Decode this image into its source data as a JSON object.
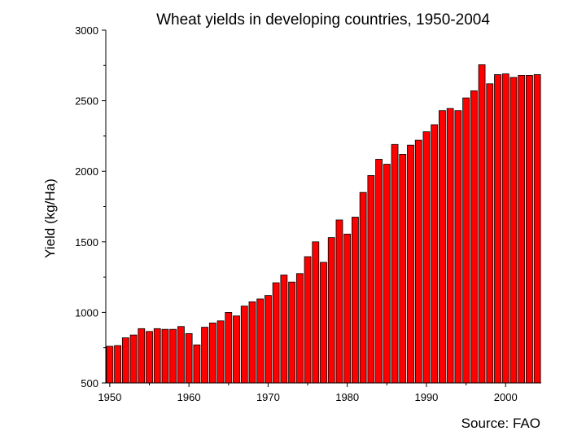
{
  "chart_data": {
    "type": "bar",
    "title": "Wheat yields in developing countries, 1950-2004",
    "xlabel": "",
    "ylabel": "Yield (kg/Ha)",
    "source": "Source:  FAO",
    "ylim": [
      500,
      3000
    ],
    "xlim": [
      1949.5,
      2004.5
    ],
    "yticks": [
      500,
      1000,
      1500,
      2000,
      2500,
      3000
    ],
    "xticks": [
      1950,
      1960,
      1970,
      1980,
      1990,
      2000
    ],
    "grid": false,
    "bar_color": "#ff0000",
    "x": [
      1950,
      1951,
      1952,
      1953,
      1954,
      1955,
      1956,
      1957,
      1958,
      1959,
      1960,
      1961,
      1962,
      1963,
      1964,
      1965,
      1966,
      1967,
      1968,
      1969,
      1970,
      1971,
      1972,
      1973,
      1974,
      1975,
      1976,
      1977,
      1978,
      1979,
      1980,
      1981,
      1982,
      1983,
      1984,
      1985,
      1986,
      1987,
      1988,
      1989,
      1990,
      1991,
      1992,
      1993,
      1994,
      1995,
      1996,
      1997,
      1998,
      1999,
      2000,
      2001,
      2002,
      2003,
      2004
    ],
    "values": [
      760,
      765,
      820,
      840,
      885,
      865,
      885,
      880,
      880,
      900,
      850,
      770,
      895,
      925,
      940,
      1000,
      975,
      1045,
      1075,
      1095,
      1120,
      1210,
      1265,
      1215,
      1275,
      1395,
      1500,
      1355,
      1530,
      1655,
      1555,
      1675,
      1850,
      1970,
      2085,
      2050,
      2190,
      2120,
      2185,
      2220,
      2280,
      2330,
      2430,
      2445,
      2430,
      2520,
      2570,
      2755,
      2620,
      2685,
      2690,
      2665,
      2680,
      2680,
      2685
    ]
  }
}
